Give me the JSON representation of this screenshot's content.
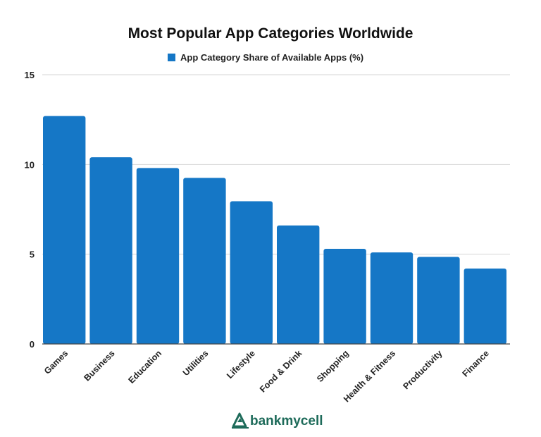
{
  "chart_data": {
    "type": "bar",
    "title": "Most Popular App Categories Worldwide",
    "xlabel": "",
    "ylabel": "",
    "categories": [
      "Games",
      "Business",
      "Education",
      "Utilities",
      "Lifestyle",
      "Food & Drink",
      "Shopping",
      "Health & Fitness",
      "Productivity",
      "Finance"
    ],
    "series": [
      {
        "name": "App Category Share of Available Apps (%)",
        "values": [
          12.7,
          10.4,
          9.8,
          9.25,
          7.95,
          6.6,
          5.3,
          5.1,
          4.85,
          4.2
        ]
      }
    ],
    "ylim": [
      0,
      15
    ],
    "yticks": [
      "0",
      "5",
      "10",
      "15"
    ],
    "grid": true,
    "legend_position": "top-center",
    "colors": {
      "bar": "#1577c6",
      "grid": "#d6d6d6"
    }
  },
  "branding": {
    "logo_name": "bankmycell",
    "logo_icon": "bankmycell-logo-icon",
    "logo_color": "#1e6b5a"
  }
}
